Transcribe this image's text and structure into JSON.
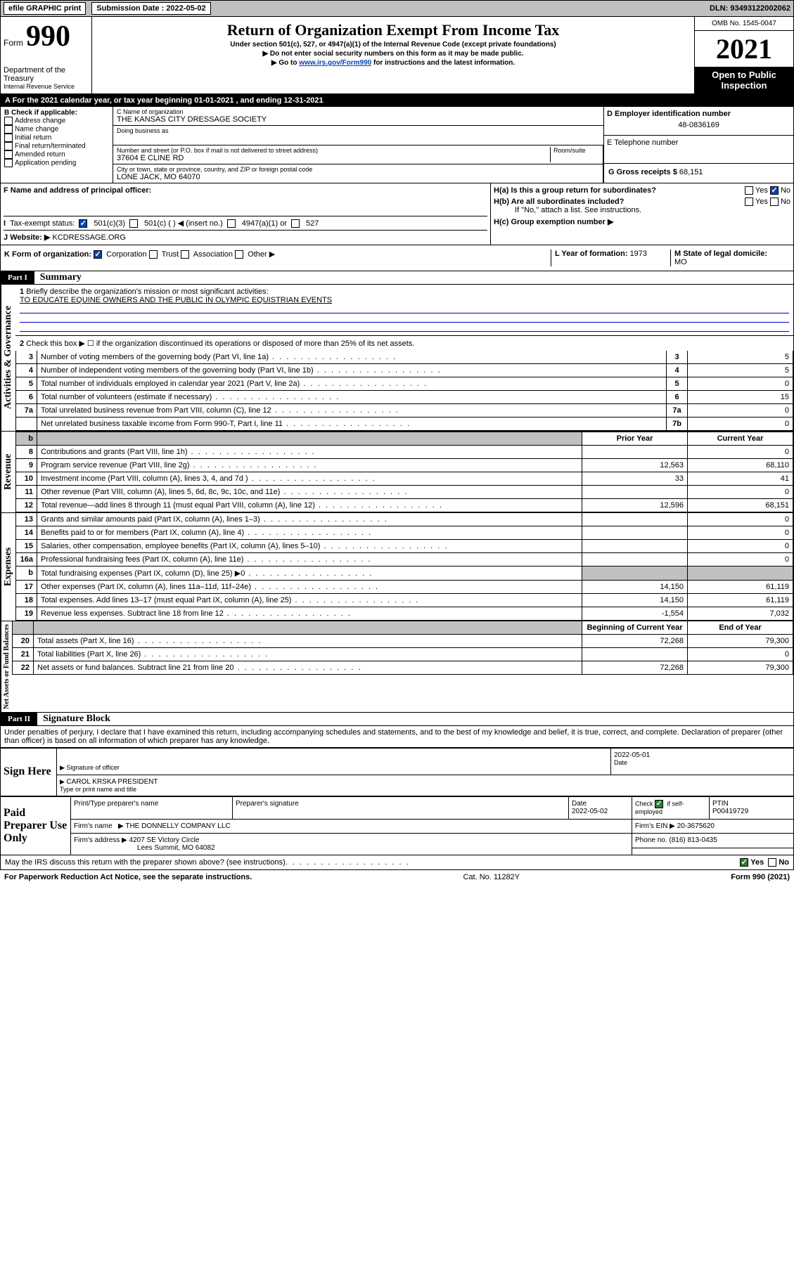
{
  "topbar": {
    "efile": "efile GRAPHIC print",
    "sub_label": "Submission Date : 2022-05-02",
    "dln": "DLN: 93493122002062"
  },
  "header": {
    "form_small": "Form",
    "form_num": "990",
    "dept": "Department of the Treasury",
    "irs": "Internal Revenue Service",
    "title": "Return of Organization Exempt From Income Tax",
    "sub1": "Under section 501(c), 527, or 4947(a)(1) of the Internal Revenue Code (except private foundations)",
    "sub2": "▶ Do not enter social security numbers on this form as it may be made public.",
    "sub3_pre": "▶ Go to ",
    "sub3_link": "www.irs.gov/Form990",
    "sub3_post": " for instructions and the latest information.",
    "omb": "OMB No. 1545-0047",
    "year": "2021",
    "open": "Open to Public Inspection"
  },
  "period": {
    "text_a": "A For the 2021 calendar year, or tax year beginning ",
    "begin": "01-01-2021",
    "text_b": " , and ending ",
    "end": "12-31-2021"
  },
  "boxB": {
    "label": "B Check if applicable:",
    "items": [
      "Address change",
      "Name change",
      "Initial return",
      "Final return/terminated",
      "Amended return",
      "Application pending"
    ]
  },
  "boxC": {
    "name_label": "C Name of organization",
    "name": "THE KANSAS CITY DRESSAGE SOCIETY",
    "dba": "Doing business as",
    "street_label": "Number and street (or P.O. box if mail is not delivered to street address)",
    "room": "Room/suite",
    "street": "37604 E CLINE RD",
    "city_label": "City or town, state or province, country, and ZIP or foreign postal code",
    "city": "LONE JACK, MO  64070"
  },
  "boxD": {
    "label": "D Employer identification number",
    "val": "48-0836169"
  },
  "boxE": {
    "label": "E Telephone number"
  },
  "boxG": {
    "label": "G Gross receipts $ ",
    "val": "68,151"
  },
  "boxF": {
    "label": "F Name and address of principal officer:"
  },
  "boxH": {
    "a": "H(a)  Is this a group return for subordinates?",
    "b": "H(b)  Are all subordinates included?",
    "b2": "If \"No,\" attach a list. See instructions.",
    "c": "H(c)  Group exemption number ▶",
    "yes": "Yes",
    "no": "No"
  },
  "boxI": {
    "label": "Tax-exempt status:",
    "a": "501(c)(3)",
    "b": "501(c) (  ) ◀ (insert no.)",
    "c": "4947(a)(1) or",
    "d": "527"
  },
  "boxJ": {
    "label": "Website: ▶",
    "val": "KCDRESSAGE.ORG"
  },
  "boxK": {
    "label": "K Form of organization:",
    "corp": "Corporation",
    "trust": "Trust",
    "assoc": "Association",
    "other": "Other ▶"
  },
  "boxL": {
    "label": "L Year of formation: ",
    "val": "1973"
  },
  "boxM": {
    "label": "M State of legal domicile:",
    "val": "MO"
  },
  "parts": {
    "p1": "Part I",
    "p1t": "Summary",
    "p2": "Part II",
    "p2t": "Signature Block"
  },
  "summary": {
    "l1": "Briefly describe the organization's mission or most significant activities:",
    "mission": "TO EDUCATE EQUINE OWNERS AND THE PUBLIC IN OLYMPIC EQUISTRIAN EVENTS",
    "l2": "Check this box ▶ ☐ if the organization discontinued its operations or disposed of more than 25% of its net assets.",
    "prior": "Prior Year",
    "current": "Current Year",
    "beg": "Beginning of Current Year",
    "end": "End of Year"
  },
  "verts": {
    "ag": "Activities & Governance",
    "rev": "Revenue",
    "exp": "Expenses",
    "na": "Net Assets or\nFund Balances"
  },
  "lines": [
    {
      "n": "3",
      "t": "Number of voting members of the governing body (Part VI, line 1a)",
      "box": "3",
      "v": "5"
    },
    {
      "n": "4",
      "t": "Number of independent voting members of the governing body (Part VI, line 1b)",
      "box": "4",
      "v": "5"
    },
    {
      "n": "5",
      "t": "Total number of individuals employed in calendar year 2021 (Part V, line 2a)",
      "box": "5",
      "v": "0"
    },
    {
      "n": "6",
      "t": "Total number of volunteers (estimate if necessary)",
      "box": "6",
      "v": "15"
    },
    {
      "n": "7a",
      "t": "Total unrelated business revenue from Part VIII, column (C), line 12",
      "box": "7a",
      "v": "0"
    },
    {
      "n": "",
      "t": "Net unrelated business taxable income from Form 990-T, Part I, line 11",
      "box": "7b",
      "v": "0"
    }
  ],
  "rev_lines": [
    {
      "n": "8",
      "t": "Contributions and grants (Part VIII, line 1h)",
      "p": "",
      "c": "0"
    },
    {
      "n": "9",
      "t": "Program service revenue (Part VIII, line 2g)",
      "p": "12,563",
      "c": "68,110"
    },
    {
      "n": "10",
      "t": "Investment income (Part VIII, column (A), lines 3, 4, and 7d )",
      "p": "33",
      "c": "41"
    },
    {
      "n": "11",
      "t": "Other revenue (Part VIII, column (A), lines 5, 6d, 8c, 9c, 10c, and 11e)",
      "p": "",
      "c": "0"
    },
    {
      "n": "12",
      "t": "Total revenue—add lines 8 through 11 (must equal Part VIII, column (A), line 12)",
      "p": "12,596",
      "c": "68,151"
    }
  ],
  "exp_lines": [
    {
      "n": "13",
      "t": "Grants and similar amounts paid (Part IX, column (A), lines 1–3)",
      "p": "",
      "c": "0"
    },
    {
      "n": "14",
      "t": "Benefits paid to or for members (Part IX, column (A), line 4)",
      "p": "",
      "c": "0"
    },
    {
      "n": "15",
      "t": "Salaries, other compensation, employee benefits (Part IX, column (A), lines 5–10)",
      "p": "",
      "c": "0"
    },
    {
      "n": "16a",
      "t": "Professional fundraising fees (Part IX, column (A), line 11e)",
      "p": "",
      "c": "0"
    },
    {
      "n": "b",
      "t": "Total fundraising expenses (Part IX, column (D), line 25) ▶0",
      "p": "shade",
      "c": "shade"
    },
    {
      "n": "17",
      "t": "Other expenses (Part IX, column (A), lines 11a–11d, 11f–24e)",
      "p": "14,150",
      "c": "61,119"
    },
    {
      "n": "18",
      "t": "Total expenses. Add lines 13–17 (must equal Part IX, column (A), line 25)",
      "p": "14,150",
      "c": "61,119"
    },
    {
      "n": "19",
      "t": "Revenue less expenses. Subtract line 18 from line 12",
      "p": "-1,554",
      "c": "7,032"
    }
  ],
  "na_lines": [
    {
      "n": "20",
      "t": "Total assets (Part X, line 16)",
      "p": "72,268",
      "c": "79,300"
    },
    {
      "n": "21",
      "t": "Total liabilities (Part X, line 26)",
      "p": "",
      "c": "0"
    },
    {
      "n": "22",
      "t": "Net assets or fund balances. Subtract line 21 from line 20",
      "p": "72,268",
      "c": "79,300"
    }
  ],
  "penalties": "Under penalties of perjury, I declare that I have examined this return, including accompanying schedules and statements, and to the best of my knowledge and belief, it is true, correct, and complete. Declaration of preparer (other than officer) is based on all information of which preparer has any knowledge.",
  "sign": {
    "here": "Sign Here",
    "sig_officer": "Signature of officer",
    "date": "Date",
    "date_val": "2022-05-01",
    "name": "CAROL KRSKA  PRESIDENT",
    "name_label": "Type or print name and title"
  },
  "paid": {
    "label": "Paid Preparer Use Only",
    "col1": "Print/Type preparer's name",
    "col2": "Preparer's signature",
    "col3": "Date",
    "col3v": "2022-05-02",
    "col4": "Check ☑ if self-employed",
    "col5": "PTIN",
    "col5v": "P00419729",
    "firm_name_l": "Firm's name",
    "firm_name": "▶ THE DONNELLY COMPANY LLC",
    "firm_ein_l": "Firm's EIN ▶ ",
    "firm_ein": "20-3675620",
    "firm_addr_l": "Firm's address ▶ ",
    "firm_addr": "4207 SE Victory Circle",
    "firm_city": "Lees Summit, MO  64082",
    "phone_l": "Phone no. ",
    "phone": "(816) 813-0435"
  },
  "discuss": {
    "t": "May the IRS discuss this return with the preparer shown above? (see instructions)",
    "yes": "Yes",
    "no": "No"
  },
  "footer": {
    "a": "For Paperwork Reduction Act Notice, see the separate instructions.",
    "b": "Cat. No. 11282Y",
    "c": "Form 990 (2021)"
  }
}
